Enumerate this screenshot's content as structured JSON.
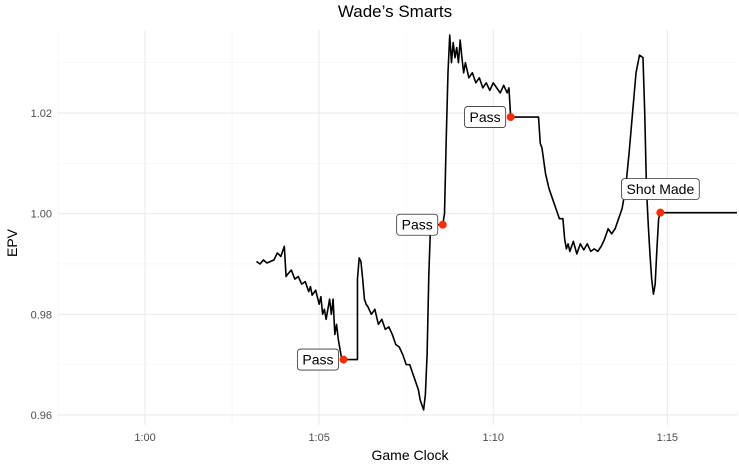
{
  "chart_data": {
    "type": "line",
    "title": "Wade’s Smarts",
    "xlabel": "Game Clock",
    "ylabel": "EPV",
    "x_unit": "seconds",
    "xlim": [
      57.5,
      77.0
    ],
    "ylim": [
      0.958,
      1.0365
    ],
    "x_ticks": [
      {
        "value": 60,
        "label": "1:00"
      },
      {
        "value": 65,
        "label": "1:05"
      },
      {
        "value": 70,
        "label": "1:10"
      },
      {
        "value": 75,
        "label": "1:15"
      }
    ],
    "y_ticks": [
      {
        "value": 0.96,
        "label": "0.96"
      },
      {
        "value": 0.98,
        "label": "0.98"
      },
      {
        "value": 1.0,
        "label": "1.00"
      },
      {
        "value": 1.02,
        "label": "1.02"
      }
    ],
    "grid": true,
    "series": [
      {
        "values": [
          [
            63.2,
            0.9905
          ],
          [
            63.3,
            0.99
          ],
          [
            63.4,
            0.9908
          ],
          [
            63.5,
            0.9902
          ],
          [
            63.7,
            0.9908
          ],
          [
            63.8,
            0.9922
          ],
          [
            63.9,
            0.9915
          ],
          [
            64.0,
            0.9935
          ],
          [
            64.05,
            0.9875
          ],
          [
            64.1,
            0.988
          ],
          [
            64.2,
            0.9888
          ],
          [
            64.3,
            0.987
          ],
          [
            64.4,
            0.9875
          ],
          [
            64.5,
            0.986
          ],
          [
            64.6,
            0.9865
          ],
          [
            64.7,
            0.9845
          ],
          [
            64.75,
            0.9855
          ],
          [
            64.8,
            0.9838
          ],
          [
            64.9,
            0.9848
          ],
          [
            65.0,
            0.982
          ],
          [
            65.05,
            0.9835
          ],
          [
            65.1,
            0.98
          ],
          [
            65.15,
            0.981
          ],
          [
            65.2,
            0.979
          ],
          [
            65.3,
            0.983
          ],
          [
            65.35,
            0.98
          ],
          [
            65.4,
            0.983
          ],
          [
            65.45,
            0.976
          ],
          [
            65.5,
            0.978
          ],
          [
            65.55,
            0.975
          ],
          [
            65.6,
            0.973
          ],
          [
            65.65,
            0.971
          ],
          [
            65.7,
            0.971
          ],
          [
            66.1,
            0.971
          ],
          [
            66.1,
            0.987
          ],
          [
            66.15,
            0.9912
          ],
          [
            66.2,
            0.9905
          ],
          [
            66.25,
            0.987
          ],
          [
            66.3,
            0.983
          ],
          [
            66.35,
            0.982
          ],
          [
            66.4,
            0.9815
          ],
          [
            66.5,
            0.98
          ],
          [
            66.6,
            0.981
          ],
          [
            66.7,
            0.978
          ],
          [
            66.8,
            0.979
          ],
          [
            66.9,
            0.977
          ],
          [
            67.0,
            0.9775
          ],
          [
            67.1,
            0.976
          ],
          [
            67.2,
            0.974
          ],
          [
            67.3,
            0.9735
          ],
          [
            67.4,
            0.972
          ],
          [
            67.5,
            0.97
          ],
          [
            67.6,
            0.97
          ],
          [
            67.7,
            0.968
          ],
          [
            67.8,
            0.966
          ],
          [
            67.85,
            0.965
          ],
          [
            67.9,
            0.963
          ],
          [
            67.95,
            0.962
          ],
          [
            68.0,
            0.961
          ],
          [
            68.05,
            0.964
          ],
          [
            68.1,
            0.972
          ],
          [
            68.15,
            0.988
          ],
          [
            68.2,
            0.9978
          ],
          [
            68.55,
            0.9978
          ],
          [
            68.6,
            1.0
          ],
          [
            68.65,
            1.015
          ],
          [
            68.7,
            1.028
          ],
          [
            68.75,
            1.0355
          ],
          [
            68.8,
            1.03
          ],
          [
            68.85,
            1.034
          ],
          [
            68.9,
            1.031
          ],
          [
            68.95,
            1.033
          ],
          [
            69.0,
            1.03
          ],
          [
            69.05,
            1.0345
          ],
          [
            69.1,
            1.031
          ],
          [
            69.15,
            1.028
          ],
          [
            69.2,
            1.03
          ],
          [
            69.3,
            1.027
          ],
          [
            69.4,
            1.028
          ],
          [
            69.5,
            1.026
          ],
          [
            69.6,
            1.027
          ],
          [
            69.7,
            1.025
          ],
          [
            69.8,
            1.026
          ],
          [
            69.9,
            1.0245
          ],
          [
            70.0,
            1.026
          ],
          [
            70.1,
            1.025
          ],
          [
            70.2,
            1.024
          ],
          [
            70.3,
            1.0255
          ],
          [
            70.4,
            1.024
          ],
          [
            70.45,
            1.025
          ],
          [
            70.5,
            1.0192
          ],
          [
            71.3,
            1.0192
          ],
          [
            71.35,
            1.014
          ],
          [
            71.4,
            1.013
          ],
          [
            71.5,
            1.008
          ],
          [
            71.6,
            1.005
          ],
          [
            71.7,
            1.003
          ],
          [
            71.8,
            1.001
          ],
          [
            71.9,
            0.999
          ],
          [
            72.0,
            0.999
          ],
          [
            72.05,
            0.995
          ],
          [
            72.1,
            0.993
          ],
          [
            72.15,
            0.994
          ],
          [
            72.2,
            0.9925
          ],
          [
            72.3,
            0.9945
          ],
          [
            72.4,
            0.992
          ],
          [
            72.5,
            0.994
          ],
          [
            72.6,
            0.9928
          ],
          [
            72.7,
            0.994
          ],
          [
            72.8,
            0.9925
          ],
          [
            72.9,
            0.993
          ],
          [
            73.0,
            0.9925
          ],
          [
            73.1,
            0.9935
          ],
          [
            73.2,
            0.995
          ],
          [
            73.3,
            0.997
          ],
          [
            73.4,
            0.996
          ],
          [
            73.5,
            0.997
          ],
          [
            73.6,
            0.999
          ],
          [
            73.7,
            1.001
          ],
          [
            73.8,
            1.005
          ],
          [
            73.9,
            1.012
          ],
          [
            74.0,
            1.02
          ],
          [
            74.1,
            1.028
          ],
          [
            74.2,
            1.0315
          ],
          [
            74.3,
            1.031
          ],
          [
            74.35,
            1.02
          ],
          [
            74.4,
            1.005
          ],
          [
            74.45,
            0.998
          ],
          [
            74.5,
            0.992
          ],
          [
            74.55,
            0.987
          ],
          [
            74.6,
            0.984
          ],
          [
            74.65,
            0.986
          ],
          [
            74.7,
            0.993
          ],
          [
            74.75,
            0.999
          ],
          [
            74.8,
            1.0002
          ],
          [
            75.0,
            1.0002
          ],
          [
            77.0,
            1.0002
          ]
        ]
      }
    ],
    "events": [
      {
        "label": "Pass",
        "x": 65.7,
        "y": 0.971
      },
      {
        "label": "Pass",
        "x": 68.55,
        "y": 0.9978
      },
      {
        "label": "Pass",
        "x": 70.5,
        "y": 1.0192
      },
      {
        "label": "Shot Made",
        "x": 74.8,
        "y": 1.0002
      }
    ],
    "colors": {
      "line": "#000000",
      "event_point": "#ff2a00",
      "grid": "#ebebeb",
      "background": "#ffffff"
    }
  }
}
